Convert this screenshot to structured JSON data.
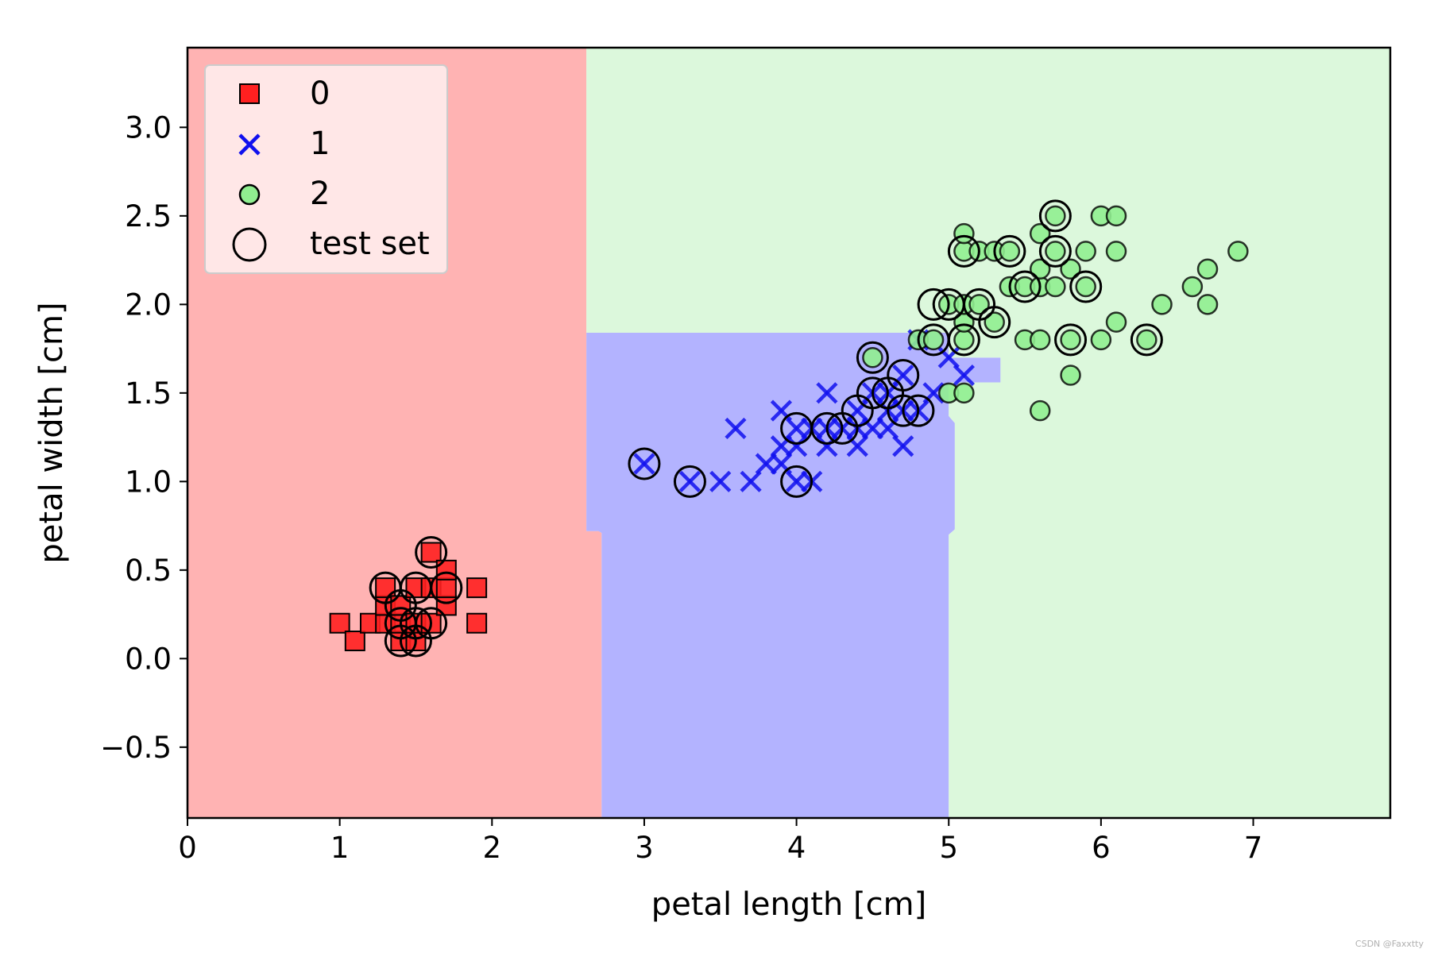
{
  "chart_data": {
    "type": "scatter",
    "title": "",
    "xlabel": "petal length [cm]",
    "ylabel": "petal width [cm]",
    "xlim": [
      0,
      7.9
    ],
    "ylim": [
      -0.9,
      3.45
    ],
    "xticks": [
      0,
      1,
      2,
      3,
      4,
      5,
      6,
      7
    ],
    "yticks": [
      -0.5,
      0.0,
      0.5,
      1.0,
      1.5,
      2.0,
      2.5,
      3.0
    ],
    "ytick_labels": [
      "−0.5",
      "0.0",
      "0.5",
      "1.0",
      "1.5",
      "2.0",
      "2.5",
      "3.0"
    ],
    "grid": false,
    "legend_position": "top-left",
    "legend": [
      "0",
      "1",
      "2",
      "test set"
    ],
    "regions": [
      {
        "class": "0",
        "color": "#ffb3b3",
        "polygon": [
          [
            0,
            -0.9
          ],
          [
            2.72,
            -0.9
          ],
          [
            2.72,
            0.71
          ],
          [
            2.7,
            0.72
          ],
          [
            2.62,
            0.72
          ],
          [
            2.62,
            3.45
          ],
          [
            0,
            3.45
          ]
        ]
      },
      {
        "class": "1",
        "color": "#b3b3ff",
        "polygon": [
          [
            2.72,
            -0.9
          ],
          [
            5.0,
            -0.9
          ],
          [
            5.0,
            0.7
          ],
          [
            5.04,
            0.73
          ],
          [
            5.04,
            1.33
          ],
          [
            5.0,
            1.37
          ],
          [
            5.0,
            1.56
          ],
          [
            5.34,
            1.56
          ],
          [
            5.34,
            1.7
          ],
          [
            5.0,
            1.7
          ],
          [
            5.0,
            1.84
          ],
          [
            2.62,
            1.84
          ],
          [
            2.62,
            0.72
          ],
          [
            2.7,
            0.72
          ],
          [
            2.72,
            0.71
          ]
        ]
      },
      {
        "class": "2",
        "color": "#dcf8dc",
        "polygon": [
          [
            5.0,
            -0.9
          ],
          [
            7.9,
            -0.9
          ],
          [
            7.9,
            3.45
          ],
          [
            2.62,
            3.45
          ],
          [
            2.62,
            1.84
          ],
          [
            5.0,
            1.84
          ],
          [
            5.0,
            1.7
          ],
          [
            5.34,
            1.7
          ],
          [
            5.34,
            1.56
          ],
          [
            5.0,
            1.56
          ],
          [
            5.0,
            1.37
          ],
          [
            5.04,
            1.33
          ],
          [
            5.04,
            0.73
          ],
          [
            5.0,
            0.7
          ]
        ]
      }
    ],
    "series": [
      {
        "name": "0",
        "marker": "square",
        "color": "#ff2020",
        "points": [
          [
            1.0,
            0.2
          ],
          [
            1.1,
            0.1
          ],
          [
            1.2,
            0.2
          ],
          [
            1.3,
            0.2
          ],
          [
            1.3,
            0.3
          ],
          [
            1.3,
            0.4
          ],
          [
            1.4,
            0.1
          ],
          [
            1.4,
            0.2
          ],
          [
            1.4,
            0.3
          ],
          [
            1.5,
            0.1
          ],
          [
            1.5,
            0.2
          ],
          [
            1.5,
            0.4
          ],
          [
            1.6,
            0.2
          ],
          [
            1.6,
            0.4
          ],
          [
            1.6,
            0.6
          ],
          [
            1.7,
            0.3
          ],
          [
            1.7,
            0.4
          ],
          [
            1.7,
            0.5
          ],
          [
            1.9,
            0.2
          ],
          [
            1.9,
            0.4
          ]
        ]
      },
      {
        "name": "1",
        "marker": "x",
        "color": "#1010ee",
        "points": [
          [
            3.0,
            1.1
          ],
          [
            3.3,
            1.0
          ],
          [
            3.5,
            1.0
          ],
          [
            3.6,
            1.3
          ],
          [
            3.7,
            1.0
          ],
          [
            3.8,
            1.1
          ],
          [
            3.9,
            1.1
          ],
          [
            3.9,
            1.2
          ],
          [
            3.9,
            1.4
          ],
          [
            4.0,
            1.0
          ],
          [
            4.0,
            1.2
          ],
          [
            4.0,
            1.3
          ],
          [
            4.1,
            1.0
          ],
          [
            4.1,
            1.3
          ],
          [
            4.2,
            1.2
          ],
          [
            4.2,
            1.3
          ],
          [
            4.2,
            1.5
          ],
          [
            4.3,
            1.3
          ],
          [
            4.4,
            1.2
          ],
          [
            4.4,
            1.3
          ],
          [
            4.4,
            1.4
          ],
          [
            4.5,
            1.3
          ],
          [
            4.5,
            1.5
          ],
          [
            4.6,
            1.3
          ],
          [
            4.6,
            1.4
          ],
          [
            4.6,
            1.5
          ],
          [
            4.7,
            1.2
          ],
          [
            4.7,
            1.4
          ],
          [
            4.7,
            1.6
          ],
          [
            4.8,
            1.4
          ],
          [
            4.8,
            1.8
          ],
          [
            4.9,
            1.5
          ],
          [
            5.0,
            1.7
          ],
          [
            5.1,
            1.6
          ]
        ]
      },
      {
        "name": "2",
        "marker": "circle",
        "color": "#90ee90",
        "points": [
          [
            4.5,
            1.7
          ],
          [
            4.8,
            1.8
          ],
          [
            4.9,
            1.8
          ],
          [
            5.0,
            1.5
          ],
          [
            5.0,
            2.0
          ],
          [
            5.1,
            1.5
          ],
          [
            5.1,
            1.8
          ],
          [
            5.1,
            1.9
          ],
          [
            5.1,
            2.0
          ],
          [
            5.1,
            2.3
          ],
          [
            5.1,
            2.4
          ],
          [
            5.2,
            2.0
          ],
          [
            5.2,
            2.3
          ],
          [
            5.3,
            1.9
          ],
          [
            5.3,
            2.3
          ],
          [
            5.4,
            2.1
          ],
          [
            5.4,
            2.3
          ],
          [
            5.5,
            1.8
          ],
          [
            5.5,
            2.1
          ],
          [
            5.6,
            1.4
          ],
          [
            5.6,
            1.8
          ],
          [
            5.6,
            2.1
          ],
          [
            5.6,
            2.2
          ],
          [
            5.6,
            2.4
          ],
          [
            5.7,
            2.1
          ],
          [
            5.7,
            2.3
          ],
          [
            5.7,
            2.5
          ],
          [
            5.8,
            1.6
          ],
          [
            5.8,
            1.8
          ],
          [
            5.8,
            2.2
          ],
          [
            5.9,
            2.1
          ],
          [
            5.9,
            2.3
          ],
          [
            6.0,
            1.8
          ],
          [
            6.0,
            2.5
          ],
          [
            6.1,
            1.9
          ],
          [
            6.1,
            2.3
          ],
          [
            6.1,
            2.5
          ],
          [
            6.3,
            1.8
          ],
          [
            6.4,
            2.0
          ],
          [
            6.6,
            2.1
          ],
          [
            6.7,
            2.0
          ],
          [
            6.7,
            2.2
          ],
          [
            6.9,
            2.3
          ]
        ]
      },
      {
        "name": "test set",
        "marker": "open-circle",
        "color": "#000000",
        "points": [
          [
            1.3,
            0.4
          ],
          [
            1.4,
            0.1
          ],
          [
            1.4,
            0.2
          ],
          [
            1.4,
            0.3
          ],
          [
            1.5,
            0.1
          ],
          [
            1.5,
            0.2
          ],
          [
            1.5,
            0.4
          ],
          [
            1.6,
            0.2
          ],
          [
            1.6,
            0.6
          ],
          [
            1.7,
            0.4
          ],
          [
            3.0,
            1.1
          ],
          [
            3.3,
            1.0
          ],
          [
            4.0,
            1.0
          ],
          [
            4.0,
            1.3
          ],
          [
            4.2,
            1.3
          ],
          [
            4.3,
            1.3
          ],
          [
            4.4,
            1.4
          ],
          [
            4.5,
            1.5
          ],
          [
            4.5,
            1.7
          ],
          [
            4.6,
            1.5
          ],
          [
            4.7,
            1.4
          ],
          [
            4.7,
            1.6
          ],
          [
            4.8,
            1.4
          ],
          [
            4.9,
            1.8
          ],
          [
            4.9,
            2.0
          ],
          [
            5.0,
            2.0
          ],
          [
            5.1,
            1.8
          ],
          [
            5.1,
            2.3
          ],
          [
            5.2,
            2.0
          ],
          [
            5.3,
            1.9
          ],
          [
            5.4,
            2.3
          ],
          [
            5.5,
            2.1
          ],
          [
            5.7,
            2.3
          ],
          [
            5.7,
            2.5
          ],
          [
            5.8,
            1.8
          ],
          [
            5.9,
            2.1
          ],
          [
            6.3,
            1.8
          ]
        ]
      }
    ]
  },
  "watermark": "CSDN @Faxxtty"
}
